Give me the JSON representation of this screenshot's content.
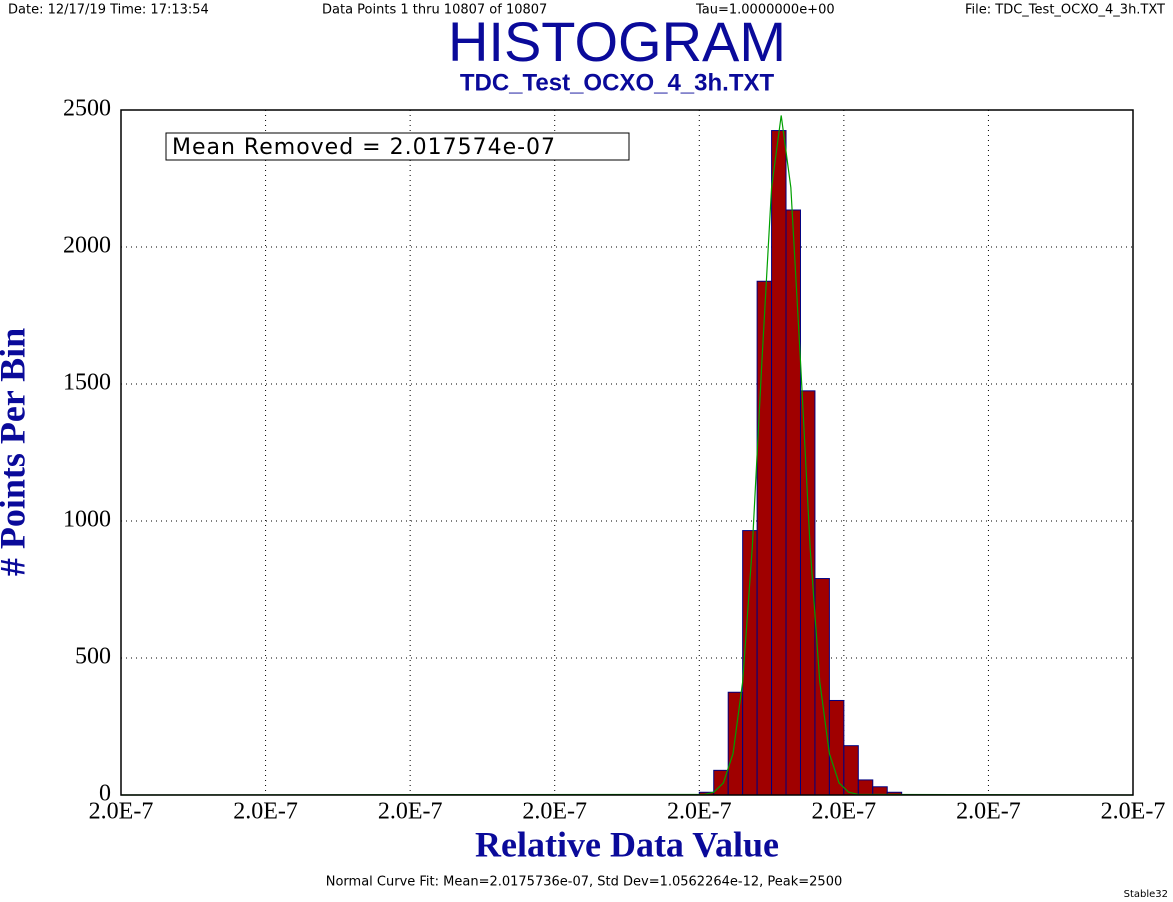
{
  "header": {
    "date": "Date: 12/17/19  Time: 17:13:54",
    "points": "Data Points 1 thru 10807 of 10807",
    "tau": "Tau=1.0000000e+00",
    "file": "File: TDC_Test_OCXO_4_3h.TXT"
  },
  "chart_data": {
    "type": "histogram",
    "title": "HISTOGRAM",
    "subtitle": "TDC_Test_OCXO_4_3h.TXT",
    "annotation": "Mean Removed = 2.017574e-07",
    "x_label": "Relative Data Value",
    "y_label": "# Points Per Bin",
    "bins": [
      2.0175311e-07,
      2.0175386e-07,
      2.0175461e-07,
      2.0175536e-07,
      2.0175611e-07,
      2.0175686e-07,
      2.0175761e-07,
      2.0175836e-07,
      2.0175911e-07,
      2.0175986e-07,
      2.0176061e-07,
      2.0176136e-07,
      2.0176211e-07,
      2.0176286e-07,
      2.0176361e-07
    ],
    "values": [
      10,
      90,
      375,
      965,
      1875,
      2425,
      2135,
      1475,
      790,
      345,
      180,
      55,
      30,
      10
    ],
    "color": "#a00000",
    "edge_color": "#000080",
    "curve": {
      "color": "#00a000",
      "x": [
        2.0172311e-07,
        2.0175336e-07,
        2.0175386e-07,
        2.0175436e-07,
        2.0175486e-07,
        2.0175536e-07,
        2.0175586e-07,
        2.0175636e-07,
        2.0175686e-07,
        2.0175736e-07,
        2.0175786e-07,
        2.0175836e-07,
        2.0175886e-07,
        2.0175936e-07,
        2.0175986e-07,
        2.0176036e-07,
        2.0176086e-07,
        2.0176136e-07,
        2.0177561e-07
      ],
      "values": [
        0,
        2,
        10,
        44,
        151,
        413,
        904,
        1584,
        2217,
        2480,
        2217,
        1584,
        904,
        413,
        151,
        44,
        10,
        2,
        0
      ]
    },
    "xlim": [
      2.0172311e-07,
      2.0177561e-07
    ],
    "xticks": [
      {
        "value": 2.0172311e-07,
        "label": "2.0E-7"
      },
      {
        "value": 2.0173061e-07,
        "label": "2.0E-7"
      },
      {
        "value": 2.0173811e-07,
        "label": "2.0E-7"
      },
      {
        "value": 2.0174561e-07,
        "label": "2.0E-7"
      },
      {
        "value": 2.0175311e-07,
        "label": "2.0E-7"
      },
      {
        "value": 2.0176061e-07,
        "label": "2.0E-7"
      },
      {
        "value": 2.0176811e-07,
        "label": "2.0E-7"
      },
      {
        "value": 2.0177561e-07,
        "label": "2.0E-7"
      }
    ],
    "ylim": [
      0,
      2500
    ],
    "yticks": [
      0,
      500,
      1000,
      1500,
      2000,
      2500
    ],
    "grid": true,
    "footer": "Normal Curve Fit: Mean=2.0175736e-07, Std Dev=1.0562264e-12, Peak=2500",
    "credit": "Stable32"
  }
}
